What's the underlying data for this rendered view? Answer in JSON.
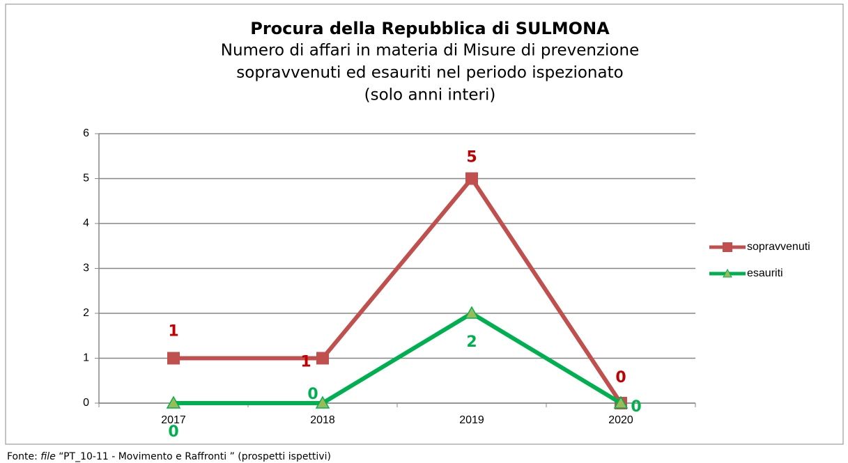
{
  "chart_data": {
    "type": "line",
    "title": "Procura della Repubblica di SULMONA",
    "subtitle": [
      "Numero di affari in materia di Misure di prevenzione",
      "sopravvenuti ed esauriti nel periodo ispezionato",
      "(solo anni interi)"
    ],
    "categories": [
      "2017",
      "2018",
      "2019",
      "2020"
    ],
    "series": [
      {
        "name": "sopravvenuti",
        "color": "#c0504d",
        "label_color": "#c00000",
        "marker": "square",
        "values": [
          1,
          1,
          5,
          0
        ]
      },
      {
        "name": "esauriti",
        "color": "#00b050",
        "label_color": "#00b050",
        "marker": "triangle",
        "marker_color": "#9bbb59",
        "values": [
          0,
          0,
          2,
          0
        ]
      }
    ],
    "ylim": [
      0,
      6
    ],
    "yticks": [
      0,
      1,
      2,
      3,
      4,
      5,
      6
    ],
    "grid": true,
    "legend": "right",
    "source": [
      "Fonte: ",
      "file",
      " “PT_10-11 - Movimento e Raffronti ” (prospetti ispettivi)"
    ]
  }
}
